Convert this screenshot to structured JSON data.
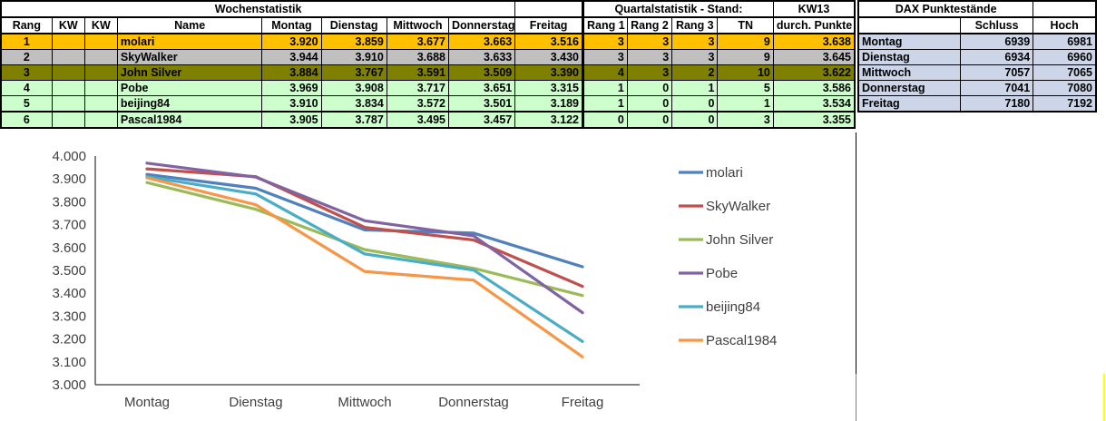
{
  "week_table": {
    "title": "Wochenstatistik",
    "headers": [
      "Rang",
      "KW",
      "KW",
      "Name",
      "Montag",
      "Dienstag",
      "Mittwoch",
      "Donnerstag",
      "Freitag"
    ],
    "rows": [
      {
        "rang": "1",
        "kw1": "",
        "kw2": "",
        "name": "molari",
        "values": [
          "3.920",
          "3.859",
          "3.677",
          "3.663",
          "3.516"
        ],
        "color": "gold"
      },
      {
        "rang": "2",
        "kw1": "",
        "kw2": "",
        "name": "SkyWalker",
        "values": [
          "3.944",
          "3.910",
          "3.688",
          "3.633",
          "3.430"
        ],
        "color": "silver"
      },
      {
        "rang": "3",
        "kw1": "",
        "kw2": "",
        "name": "John Silver",
        "values": [
          "3.884",
          "3.767",
          "3.591",
          "3.509",
          "3.390"
        ],
        "color": "olive"
      },
      {
        "rang": "4",
        "kw1": "",
        "kw2": "",
        "name": "Pobe",
        "values": [
          "3.969",
          "3.908",
          "3.717",
          "3.651",
          "3.315"
        ],
        "color": "green"
      },
      {
        "rang": "5",
        "kw1": "",
        "kw2": "",
        "name": "beijing84",
        "values": [
          "3.910",
          "3.834",
          "3.572",
          "3.501",
          "3.189"
        ],
        "color": "green"
      },
      {
        "rang": "6",
        "kw1": "",
        "kw2": "",
        "name": "Pascal1984",
        "values": [
          "3.905",
          "3.787",
          "3.495",
          "3.457",
          "3.122"
        ],
        "color": "green"
      }
    ]
  },
  "quarter_table": {
    "title": "Quartalstatistik  - Stand:",
    "stand": "KW13",
    "headers": [
      "Rang 1",
      "Rang 2",
      "Rang 3",
      "TN",
      "durch. Punkte"
    ],
    "rows": [
      {
        "values": [
          "3",
          "3",
          "3",
          "9",
          "3.638"
        ],
        "color": "gold"
      },
      {
        "values": [
          "3",
          "3",
          "3",
          "9",
          "3.645"
        ],
        "color": "silver"
      },
      {
        "values": [
          "4",
          "3",
          "2",
          "10",
          "3.622"
        ],
        "color": "olive"
      },
      {
        "values": [
          "1",
          "0",
          "1",
          "5",
          "3.586"
        ],
        "color": "green"
      },
      {
        "values": [
          "1",
          "0",
          "0",
          "1",
          "3.534"
        ],
        "color": "green"
      },
      {
        "values": [
          "0",
          "0",
          "0",
          "3",
          "3.355"
        ],
        "color": "green"
      }
    ]
  },
  "dax_table": {
    "title": "DAX Punktestände",
    "headers": [
      "",
      "Schluss",
      "Hoch"
    ],
    "rows": [
      {
        "day": "Montag",
        "schluss": "6939",
        "hoch": "6981"
      },
      {
        "day": "Dienstag",
        "schluss": "6934",
        "hoch": "6960"
      },
      {
        "day": "Mittwoch",
        "schluss": "7057",
        "hoch": "7065"
      },
      {
        "day": "Donnerstag",
        "schluss": "7041",
        "hoch": "7080"
      },
      {
        "day": "Freitag",
        "schluss": "7180",
        "hoch": "7192"
      }
    ]
  },
  "colors": {
    "gold": "#FFC000",
    "silver": "#C0C0C0",
    "olive": "#808000",
    "green": "#CCFFCC",
    "dax_row": "#CDD6E9",
    "axis": "#595959",
    "chart_text": "#3F3F3F",
    "page_break_black": "#000000",
    "page_break_gray": "#808080",
    "page_break_yellow": "#FFFF00"
  },
  "chart_data": {
    "type": "line",
    "categories": [
      "Montag",
      "Dienstag",
      "Mittwoch",
      "Donnerstag",
      "Freitag"
    ],
    "series": [
      {
        "name": "molari",
        "color": "#4F81BD",
        "values": [
          3920,
          3859,
          3677,
          3663,
          3516
        ]
      },
      {
        "name": "SkyWalker",
        "color": "#C0504D",
        "values": [
          3944,
          3910,
          3688,
          3633,
          3430
        ]
      },
      {
        "name": "John Silver",
        "color": "#9BBB59",
        "values": [
          3884,
          3767,
          3591,
          3509,
          3390
        ]
      },
      {
        "name": "Pobe",
        "color": "#8064A2",
        "values": [
          3969,
          3908,
          3717,
          3651,
          3315
        ]
      },
      {
        "name": "beijing84",
        "color": "#4BACC6",
        "values": [
          3910,
          3834,
          3572,
          3501,
          3189
        ]
      },
      {
        "name": "Pascal1984",
        "color": "#F79646",
        "values": [
          3905,
          3787,
          3495,
          3457,
          3122
        ]
      }
    ],
    "title": "",
    "xlabel": "",
    "ylabel": "",
    "ylim": [
      3000,
      4000
    ],
    "ytick_step": 100,
    "ytick_labels": [
      "3.000",
      "3.100",
      "3.200",
      "3.300",
      "3.400",
      "3.500",
      "3.600",
      "3.700",
      "3.800",
      "3.900",
      "4.000"
    ],
    "grid": false,
    "legend_position": "right"
  }
}
